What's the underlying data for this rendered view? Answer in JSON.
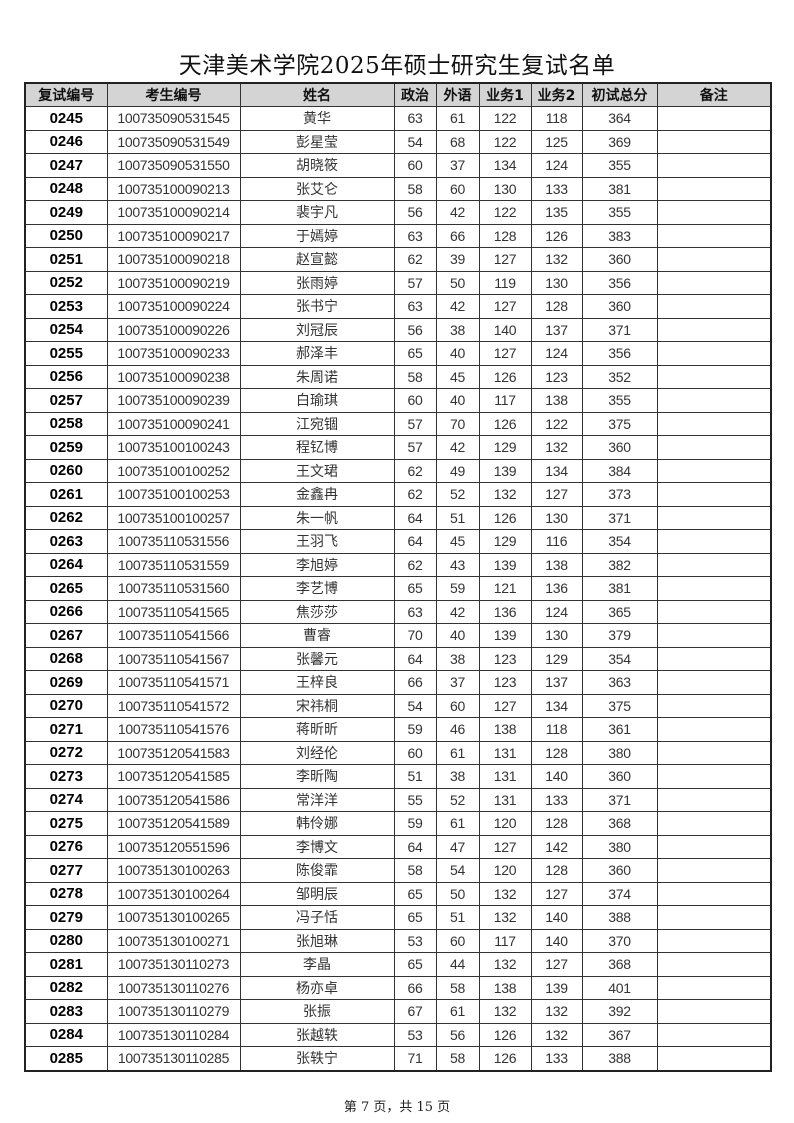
{
  "title": "天津美术学院2025年硕士研究生复试名单",
  "columns": [
    "复试编号",
    "考生编号",
    "姓名",
    "政治",
    "外语",
    "业务1",
    "业务2",
    "初试总分",
    "备注"
  ],
  "rows": [
    [
      "0245",
      "100735090531545",
      "黄华",
      "63",
      "61",
      "122",
      "118",
      "364",
      ""
    ],
    [
      "0246",
      "100735090531549",
      "彭星莹",
      "54",
      "68",
      "122",
      "125",
      "369",
      ""
    ],
    [
      "0247",
      "100735090531550",
      "胡晓筱",
      "60",
      "37",
      "134",
      "124",
      "355",
      ""
    ],
    [
      "0248",
      "100735100090213",
      "张艾仑",
      "58",
      "60",
      "130",
      "133",
      "381",
      ""
    ],
    [
      "0249",
      "100735100090214",
      "裴宇凡",
      "56",
      "42",
      "122",
      "135",
      "355",
      ""
    ],
    [
      "0250",
      "100735100090217",
      "于嫣婷",
      "63",
      "66",
      "128",
      "126",
      "383",
      ""
    ],
    [
      "0251",
      "100735100090218",
      "赵宣懿",
      "62",
      "39",
      "127",
      "132",
      "360",
      ""
    ],
    [
      "0252",
      "100735100090219",
      "张雨婷",
      "57",
      "50",
      "119",
      "130",
      "356",
      ""
    ],
    [
      "0253",
      "100735100090224",
      "张书宁",
      "63",
      "42",
      "127",
      "128",
      "360",
      ""
    ],
    [
      "0254",
      "100735100090226",
      "刘冠辰",
      "56",
      "38",
      "140",
      "137",
      "371",
      ""
    ],
    [
      "0255",
      "100735100090233",
      "郝泽丰",
      "65",
      "40",
      "127",
      "124",
      "356",
      ""
    ],
    [
      "0256",
      "100735100090238",
      "朱周诺",
      "58",
      "45",
      "126",
      "123",
      "352",
      ""
    ],
    [
      "0257",
      "100735100090239",
      "白瑜琪",
      "60",
      "40",
      "117",
      "138",
      "355",
      ""
    ],
    [
      "0258",
      "100735100090241",
      "江宛锢",
      "57",
      "70",
      "126",
      "122",
      "375",
      ""
    ],
    [
      "0259",
      "100735100100243",
      "程钇博",
      "57",
      "42",
      "129",
      "132",
      "360",
      ""
    ],
    [
      "0260",
      "100735100100252",
      "王文珺",
      "62",
      "49",
      "139",
      "134",
      "384",
      ""
    ],
    [
      "0261",
      "100735100100253",
      "金鑫冉",
      "62",
      "52",
      "132",
      "127",
      "373",
      ""
    ],
    [
      "0262",
      "100735100100257",
      "朱一帆",
      "64",
      "51",
      "126",
      "130",
      "371",
      ""
    ],
    [
      "0263",
      "100735110531556",
      "王羽飞",
      "64",
      "45",
      "129",
      "116",
      "354",
      ""
    ],
    [
      "0264",
      "100735110531559",
      "李旭婷",
      "62",
      "43",
      "139",
      "138",
      "382",
      ""
    ],
    [
      "0265",
      "100735110531560",
      "李艺博",
      "65",
      "59",
      "121",
      "136",
      "381",
      ""
    ],
    [
      "0266",
      "100735110541565",
      "焦莎莎",
      "63",
      "42",
      "136",
      "124",
      "365",
      ""
    ],
    [
      "0267",
      "100735110541566",
      "曹睿",
      "70",
      "40",
      "139",
      "130",
      "379",
      ""
    ],
    [
      "0268",
      "100735110541567",
      "张馨元",
      "64",
      "38",
      "123",
      "129",
      "354",
      ""
    ],
    [
      "0269",
      "100735110541571",
      "王梓良",
      "66",
      "37",
      "123",
      "137",
      "363",
      ""
    ],
    [
      "0270",
      "100735110541572",
      "宋祎桐",
      "54",
      "60",
      "127",
      "134",
      "375",
      ""
    ],
    [
      "0271",
      "100735110541576",
      "蒋昕昕",
      "59",
      "46",
      "138",
      "118",
      "361",
      ""
    ],
    [
      "0272",
      "100735120541583",
      "刘经伦",
      "60",
      "61",
      "131",
      "128",
      "380",
      ""
    ],
    [
      "0273",
      "100735120541585",
      "李昕陶",
      "51",
      "38",
      "131",
      "140",
      "360",
      ""
    ],
    [
      "0274",
      "100735120541586",
      "常洋洋",
      "55",
      "52",
      "131",
      "133",
      "371",
      ""
    ],
    [
      "0275",
      "100735120541589",
      "韩伶娜",
      "59",
      "61",
      "120",
      "128",
      "368",
      ""
    ],
    [
      "0276",
      "100735120551596",
      "李博文",
      "64",
      "47",
      "127",
      "142",
      "380",
      ""
    ],
    [
      "0277",
      "100735130100263",
      "陈俊霏",
      "58",
      "54",
      "120",
      "128",
      "360",
      ""
    ],
    [
      "0278",
      "100735130100264",
      "邹明辰",
      "65",
      "50",
      "132",
      "127",
      "374",
      ""
    ],
    [
      "0279",
      "100735130100265",
      "冯子恬",
      "65",
      "51",
      "132",
      "140",
      "388",
      ""
    ],
    [
      "0280",
      "100735130100271",
      "张旭琳",
      "53",
      "60",
      "117",
      "140",
      "370",
      ""
    ],
    [
      "0281",
      "100735130110273",
      "李晶",
      "65",
      "44",
      "132",
      "127",
      "368",
      ""
    ],
    [
      "0282",
      "100735130110276",
      "杨亦卓",
      "66",
      "58",
      "138",
      "139",
      "401",
      ""
    ],
    [
      "0283",
      "100735130110279",
      "张振",
      "67",
      "61",
      "132",
      "132",
      "392",
      ""
    ],
    [
      "0284",
      "100735130110284",
      "张越轶",
      "53",
      "56",
      "126",
      "132",
      "367",
      ""
    ],
    [
      "0285",
      "100735130110285",
      "张轶宁",
      "71",
      "58",
      "126",
      "133",
      "388",
      ""
    ]
  ],
  "footer": "第 7 页，共 15 页"
}
